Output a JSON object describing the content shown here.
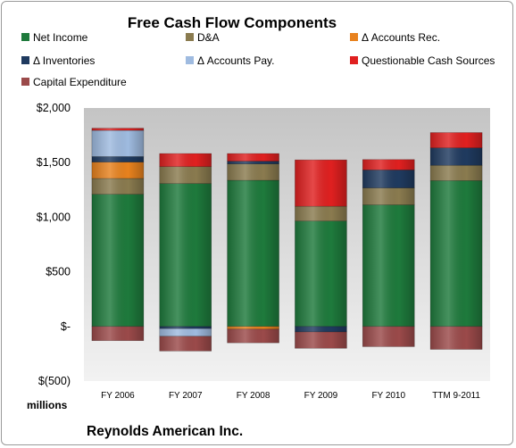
{
  "chart_data": {
    "type": "bar",
    "stacked": true,
    "title": "Free Cash Flow Components",
    "units_label": "millions",
    "company": "Reynolds American Inc.",
    "categories": [
      "FY 2006",
      "FY 2007",
      "FY 2008",
      "FY 2009",
      "FY 2010",
      "TTM 9-2011"
    ],
    "ylim": [
      -500,
      2000
    ],
    "y_ticks": [
      2000,
      1500,
      1000,
      500,
      0,
      -500
    ],
    "y_tick_labels": [
      "$2,000",
      "$1,500",
      "$1,000",
      "$500",
      "$-",
      "$(500)"
    ],
    "grid": false,
    "legend_position": "top",
    "series": [
      {
        "name": "Net Income",
        "color": "#1e7a3c",
        "values": [
          1210,
          1308,
          1338,
          965,
          1113,
          1335
        ]
      },
      {
        "name": "D&A",
        "color": "#8a7b4f",
        "values": [
          145,
          155,
          150,
          135,
          155,
          140
        ]
      },
      {
        "name": "Δ Accounts Rec.",
        "color": "#e8821e",
        "values": [
          150,
          0,
          -25,
          0,
          0,
          0
        ]
      },
      {
        "name": "Δ Inventories",
        "color": "#1f3a5f",
        "values": [
          50,
          -20,
          25,
          -50,
          165,
          160
        ]
      },
      {
        "name": "Δ Accounts Pay.",
        "color": "#9fbbe0",
        "values": [
          240,
          -70,
          0,
          0,
          0,
          0
        ]
      },
      {
        "name": "Questionable Cash Sources",
        "color": "#e02020",
        "values": [
          20,
          120,
          70,
          425,
          95,
          140
        ]
      },
      {
        "name": "Capital Expenditure",
        "color": "#9b4a4a",
        "values": [
          -130,
          -135,
          -125,
          -150,
          -185,
          -210
        ]
      }
    ]
  }
}
